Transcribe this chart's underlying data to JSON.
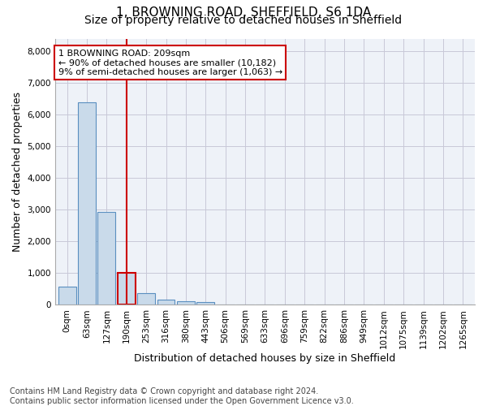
{
  "title_line1": "1, BROWNING ROAD, SHEFFIELD, S6 1DA",
  "title_line2": "Size of property relative to detached houses in Sheffield",
  "xlabel": "Distribution of detached houses by size in Sheffield",
  "ylabel": "Number of detached properties",
  "footnote": "Contains HM Land Registry data © Crown copyright and database right 2024.\nContains public sector information licensed under the Open Government Licence v3.0.",
  "bar_labels": [
    "0sqm",
    "63sqm",
    "127sqm",
    "190sqm",
    "253sqm",
    "316sqm",
    "380sqm",
    "443sqm",
    "506sqm",
    "569sqm",
    "633sqm",
    "696sqm",
    "759sqm",
    "822sqm",
    "886sqm",
    "949sqm",
    "1012sqm",
    "1075sqm",
    "1139sqm",
    "1202sqm",
    "1265sqm"
  ],
  "bar_values": [
    570,
    6400,
    2920,
    1000,
    365,
    175,
    105,
    85,
    0,
    0,
    0,
    0,
    0,
    0,
    0,
    0,
    0,
    0,
    0,
    0,
    0
  ],
  "bar_color": "#c9daea",
  "bar_edge_color": "#5a8fc0",
  "highlight_bar_index": 3,
  "highlight_color_edge": "#cc0000",
  "vline_color": "#cc0000",
  "annotation_text": "1 BROWNING ROAD: 209sqm\n← 90% of detached houses are smaller (10,182)\n9% of semi-detached houses are larger (1,063) →",
  "annotation_box_color": "#cc0000",
  "ylim": [
    0,
    8400
  ],
  "yticks": [
    0,
    1000,
    2000,
    3000,
    4000,
    5000,
    6000,
    7000,
    8000
  ],
  "grid_color": "#c8c8d8",
  "bg_color": "#eef2f8",
  "title1_fontsize": 11,
  "title2_fontsize": 10,
  "xlabel_fontsize": 9,
  "ylabel_fontsize": 9,
  "tick_fontsize": 7.5,
  "annotation_fontsize": 8,
  "footnote_fontsize": 7
}
